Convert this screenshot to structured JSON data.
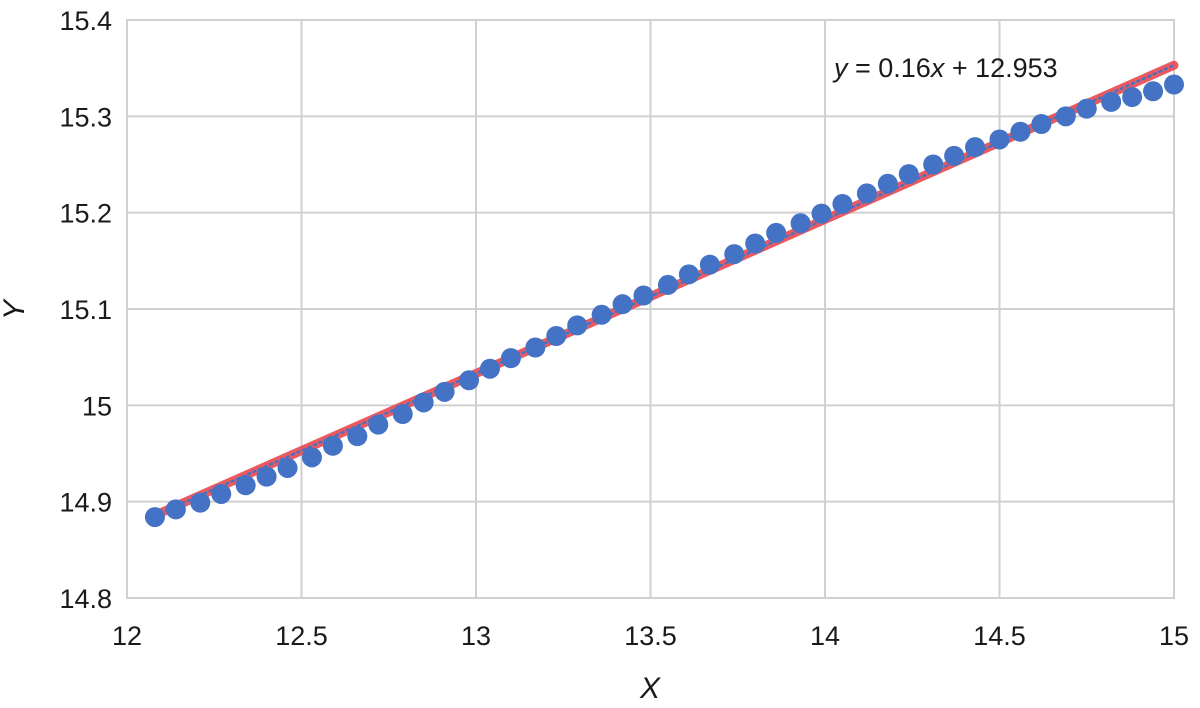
{
  "chart_data": {
    "type": "scatter",
    "title": "",
    "xlabel": "X",
    "ylabel": "Y",
    "xlim": [
      12,
      15
    ],
    "ylim": [
      14.8,
      15.4
    ],
    "x_ticks": [
      "12",
      "12.5",
      "13",
      "13.5",
      "14",
      "14.5",
      "15"
    ],
    "y_ticks": [
      "14.8",
      "14.9",
      "15",
      "15.1",
      "15.2",
      "15.3",
      "15.4"
    ],
    "grid": true,
    "legend": "none",
    "colors": {
      "points": "#4472c4",
      "trendline": "#e8484f",
      "trendline_dots": "#4472c4",
      "grid": "#d0d0d0"
    },
    "series": [
      {
        "values": [
          [
            12.08,
            14.884
          ],
          [
            12.14,
            14.892
          ],
          [
            12.21,
            14.899
          ],
          [
            12.27,
            14.908
          ],
          [
            12.34,
            14.917
          ],
          [
            12.4,
            14.926
          ],
          [
            12.46,
            14.935
          ],
          [
            12.53,
            14.946
          ],
          [
            12.59,
            14.958
          ],
          [
            12.66,
            14.968
          ],
          [
            12.72,
            14.98
          ],
          [
            12.79,
            14.991
          ],
          [
            12.85,
            15.003
          ],
          [
            12.91,
            15.014
          ],
          [
            12.98,
            15.026
          ],
          [
            13.04,
            15.038
          ],
          [
            13.1,
            15.049
          ],
          [
            13.17,
            15.06
          ],
          [
            13.23,
            15.072
          ],
          [
            13.29,
            15.083
          ],
          [
            13.36,
            15.094
          ],
          [
            13.42,
            15.105
          ],
          [
            13.48,
            15.114
          ],
          [
            13.55,
            15.125
          ],
          [
            13.61,
            15.136
          ],
          [
            13.67,
            15.146
          ],
          [
            13.74,
            15.157
          ],
          [
            13.8,
            15.168
          ],
          [
            13.86,
            15.179
          ],
          [
            13.93,
            15.189
          ],
          [
            13.99,
            15.199
          ],
          [
            14.05,
            15.209
          ],
          [
            14.12,
            15.22
          ],
          [
            14.18,
            15.23
          ],
          [
            14.24,
            15.24
          ],
          [
            14.31,
            15.25
          ],
          [
            14.37,
            15.259
          ],
          [
            14.43,
            15.268
          ],
          [
            14.5,
            15.276
          ],
          [
            14.56,
            15.284
          ],
          [
            14.62,
            15.292
          ],
          [
            14.69,
            15.3
          ],
          [
            14.75,
            15.308
          ],
          [
            14.82,
            15.315
          ],
          [
            14.88,
            15.32
          ],
          [
            14.94,
            15.326
          ],
          [
            15.0,
            15.333
          ]
        ]
      }
    ],
    "trendline": {
      "type": "linear",
      "slope": 0.16,
      "intercept": 12.953,
      "x_range": [
        12.08,
        15.0
      ],
      "equation_parts": [
        "y",
        " = 0.16",
        "x",
        " + 12.953"
      ]
    }
  }
}
